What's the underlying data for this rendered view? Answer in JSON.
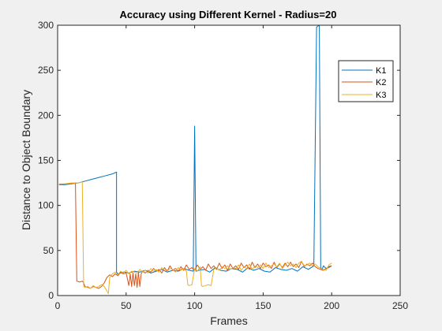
{
  "chart_data": {
    "type": "line",
    "title": "Accuracy using Different Kernel - Radius=20",
    "xlabel": "Frames",
    "ylabel": "Distance to Object Boundary",
    "xlim": [
      0,
      250
    ],
    "ylim": [
      0,
      300
    ],
    "xticks": [
      0,
      50,
      100,
      150,
      200,
      250
    ],
    "yticks": [
      0,
      50,
      100,
      150,
      200,
      250,
      300
    ],
    "grid": false,
    "legend_position": "top-right",
    "series": [
      {
        "name": "K1",
        "color": "#0072BD",
        "x": [
          1,
          5,
          10,
          15,
          20,
          25,
          30,
          35,
          40,
          43,
          43,
          44,
          48,
          52,
          56,
          60,
          64,
          68,
          72,
          76,
          80,
          84,
          88,
          92,
          96,
          99,
          100,
          101,
          103,
          107,
          111,
          115,
          119,
          123,
          127,
          131,
          135,
          139,
          143,
          147,
          151,
          155,
          159,
          163,
          167,
          171,
          175,
          179,
          183,
          187,
          189,
          190,
          191,
          192,
          193,
          194,
          196,
          198,
          200
        ],
        "y": [
          123,
          123,
          124,
          125,
          127,
          129,
          131,
          133,
          135,
          137,
          26,
          24,
          26,
          25,
          27,
          26,
          28,
          25,
          27,
          29,
          26,
          28,
          27,
          30,
          28,
          27,
          188,
          27,
          28,
          29,
          26,
          31,
          28,
          27,
          30,
          29,
          26,
          31,
          28,
          30,
          27,
          26,
          31,
          29,
          28,
          30,
          27,
          32,
          29,
          33,
          298,
          299,
          300,
          31,
          29,
          33,
          30,
          32,
          33
        ]
      },
      {
        "name": "K2",
        "color": "#D95319",
        "x": [
          1,
          5,
          10,
          13,
          14,
          16,
          18,
          19,
          20,
          22,
          24,
          26,
          28,
          30,
          32,
          34,
          36,
          38,
          40,
          42,
          44,
          46,
          48,
          50,
          52,
          53,
          54,
          55,
          56,
          57,
          58,
          59,
          60,
          61,
          62,
          64,
          66,
          68,
          70,
          72,
          74,
          76,
          78,
          80,
          82,
          84,
          86,
          88,
          90,
          92,
          94,
          96,
          98,
          100,
          102,
          104,
          106,
          108,
          110,
          112,
          114,
          116,
          118,
          120,
          122,
          124,
          126,
          128,
          130,
          132,
          134,
          136,
          138,
          140,
          142,
          144,
          146,
          148,
          150,
          152,
          154,
          156,
          158,
          160,
          162,
          164,
          166,
          168,
          170,
          172,
          174,
          176,
          178,
          180,
          182,
          184,
          186,
          188,
          190,
          192,
          194,
          196,
          198,
          200
        ],
        "y": [
          123,
          124,
          124,
          125,
          16,
          15,
          16,
          14,
          10,
          9,
          8,
          10,
          9,
          8,
          10,
          14,
          20,
          23,
          21,
          24,
          22,
          26,
          24,
          25,
          11,
          24,
          10,
          25,
          11,
          24,
          9,
          26,
          10,
          24,
          27,
          25,
          28,
          26,
          30,
          27,
          29,
          25,
          31,
          27,
          33,
          28,
          30,
          27,
          32,
          28,
          34,
          29,
          31,
          28,
          34,
          29,
          32,
          28,
          35,
          30,
          33,
          29,
          36,
          30,
          34,
          28,
          35,
          30,
          33,
          29,
          36,
          31,
          34,
          29,
          37,
          31,
          35,
          30,
          36,
          32,
          34,
          30,
          37,
          31,
          35,
          31,
          36,
          32,
          37,
          32,
          35,
          31,
          38,
          32,
          35,
          33,
          36,
          32,
          30,
          29,
          28,
          30,
          31,
          33
        ]
      },
      {
        "name": "K3",
        "color": "#EDB120",
        "x": [
          1,
          5,
          10,
          15,
          18,
          19,
          20,
          22,
          24,
          26,
          28,
          30,
          32,
          34,
          36,
          37,
          38,
          40,
          42,
          44,
          46,
          48,
          50,
          52,
          54,
          56,
          58,
          60,
          62,
          64,
          66,
          68,
          70,
          72,
          74,
          76,
          78,
          80,
          82,
          84,
          86,
          88,
          90,
          92,
          94,
          95,
          96,
          98,
          100,
          102,
          104,
          105,
          106,
          108,
          110,
          112,
          114,
          116,
          118,
          120,
          122,
          124,
          126,
          128,
          130,
          132,
          134,
          136,
          138,
          140,
          142,
          144,
          146,
          148,
          150,
          152,
          154,
          156,
          158,
          160,
          162,
          164,
          166,
          168,
          170,
          172,
          174,
          176,
          178,
          180,
          182,
          184,
          186,
          188,
          190,
          192,
          194,
          196,
          198,
          200
        ],
        "y": [
          124,
          124,
          125,
          125,
          126,
          10,
          9,
          10,
          8,
          11,
          9,
          10,
          12,
          10,
          5,
          2,
          20,
          24,
          26,
          23,
          27,
          25,
          28,
          24,
          27,
          26,
          25,
          29,
          26,
          28,
          25,
          30,
          27,
          29,
          26,
          31,
          28,
          27,
          30,
          29,
          26,
          31,
          28,
          30,
          27,
          12,
          11,
          12,
          30,
          27,
          32,
          11,
          10,
          11,
          12,
          11,
          29,
          31,
          28,
          32,
          30,
          33,
          29,
          31,
          30,
          34,
          28,
          32,
          30,
          35,
          29,
          33,
          31,
          34,
          30,
          36,
          31,
          33,
          35,
          32,
          36,
          30,
          34,
          37,
          33,
          35,
          31,
          36,
          38,
          33,
          34,
          36,
          33,
          35,
          32,
          30,
          29,
          28,
          34,
          36
        ]
      }
    ]
  }
}
